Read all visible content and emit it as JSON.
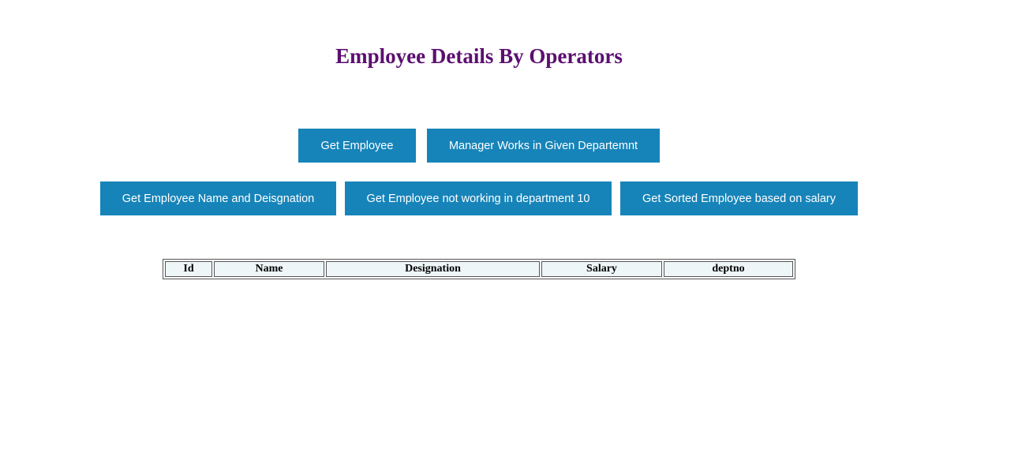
{
  "page": {
    "title": "Employee Details By Operators"
  },
  "buttons": {
    "get_employee": "Get Employee",
    "manager_works_dept": "Manager Works in Given Departemnt",
    "name_and_designation": "Get Employee Name and Deisgnation",
    "not_working_dept10": "Get Employee not working in department 10",
    "sorted_by_salary": "Get Sorted Employee based on salary"
  },
  "table": {
    "columns": [
      "Id",
      "Name",
      "Designation",
      "Salary",
      "deptno"
    ],
    "rows": []
  },
  "colors": {
    "title": "#5b0f70",
    "button_bg": "#1784b9",
    "button_text": "#ffffff",
    "header_bg": "#eef6f7"
  }
}
